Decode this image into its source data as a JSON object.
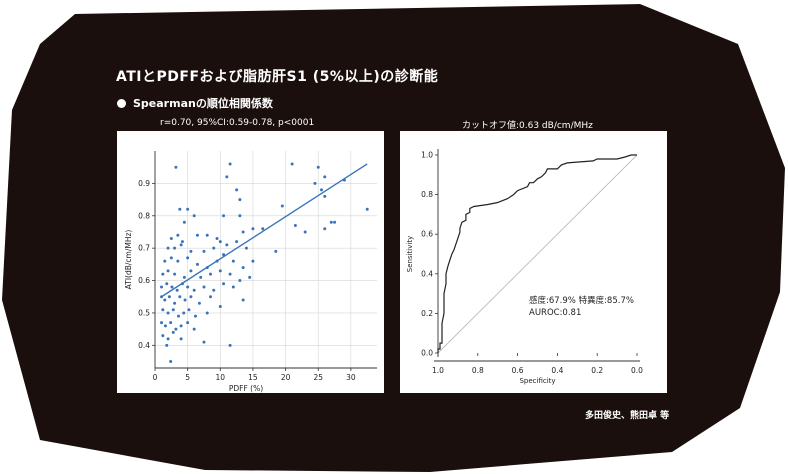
{
  "header": {
    "title": "ATIとPDFFおよび脂肪肝S1 (5%以上)の診断能",
    "bullet": "Spearmanの順位相関係数",
    "stats": "r=0.70, 95%CI:0.59-0.78, p<0001",
    "cutoff": "カットオフ値:0.63 dB/cm/MHz"
  },
  "authors": "多田俊史、熊田卓 等",
  "colors": {
    "background_blob": "#1a0f0d",
    "point": "#3a74b8",
    "roc_line": "#222222",
    "diagonal": "#bbbbbb"
  },
  "chart_data": [
    {
      "type": "scatter",
      "xlabel": "PDFF (%)",
      "ylabel": "ATI(dB/cm/MHz)",
      "xlim": [
        0,
        34
      ],
      "ylim": [
        0.33,
        1.0
      ],
      "xticks": [
        "0",
        "5",
        "10",
        "15",
        "20",
        "25",
        "30"
      ],
      "yticks": [
        "0.4",
        "0.5",
        "0.6",
        "0.7",
        "0.8",
        "0.9"
      ],
      "grid": true,
      "fit_line": {
        "x": [
          1.0,
          32.5
        ],
        "y": [
          0.55,
          0.96
        ]
      },
      "points": [
        [
          3.2,
          0.95
        ],
        [
          11.5,
          0.96
        ],
        [
          21,
          0.96
        ],
        [
          25,
          0.95
        ],
        [
          26,
          0.92
        ],
        [
          29,
          0.91
        ],
        [
          25.5,
          0.88
        ],
        [
          24.5,
          0.9
        ],
        [
          26,
          0.86
        ],
        [
          32.5,
          0.82
        ],
        [
          11,
          0.92
        ],
        [
          13,
          0.85
        ],
        [
          12.5,
          0.88
        ],
        [
          19.5,
          0.83
        ],
        [
          3.8,
          0.82
        ],
        [
          5,
          0.82
        ],
        [
          4.5,
          0.78
        ],
        [
          6,
          0.8
        ],
        [
          10.5,
          0.8
        ],
        [
          13,
          0.8
        ],
        [
          27.5,
          0.78
        ],
        [
          21.5,
          0.77
        ],
        [
          2.5,
          0.73
        ],
        [
          3.5,
          0.74
        ],
        [
          4.2,
          0.72
        ],
        [
          6.5,
          0.74
        ],
        [
          8,
          0.74
        ],
        [
          9.5,
          0.73
        ],
        [
          13.5,
          0.75
        ],
        [
          15,
          0.76
        ],
        [
          16.5,
          0.76
        ],
        [
          23,
          0.75
        ],
        [
          26,
          0.76
        ],
        [
          27,
          0.78
        ],
        [
          2,
          0.7
        ],
        [
          3,
          0.7
        ],
        [
          4,
          0.71
        ],
        [
          5.5,
          0.69
        ],
        [
          7.5,
          0.69
        ],
        [
          9,
          0.7
        ],
        [
          10,
          0.72
        ],
        [
          11,
          0.71
        ],
        [
          12.5,
          0.72
        ],
        [
          14,
          0.7
        ],
        [
          18.5,
          0.69
        ],
        [
          1.5,
          0.66
        ],
        [
          2.5,
          0.67
        ],
        [
          3.5,
          0.66
        ],
        [
          5,
          0.67
        ],
        [
          6.5,
          0.65
        ],
        [
          8,
          0.64
        ],
        [
          9.5,
          0.66
        ],
        [
          10.5,
          0.68
        ],
        [
          12,
          0.66
        ],
        [
          13.5,
          0.64
        ],
        [
          15,
          0.66
        ],
        [
          1.2,
          0.62
        ],
        [
          2,
          0.63
        ],
        [
          3,
          0.62
        ],
        [
          4.5,
          0.61
        ],
        [
          5.5,
          0.63
        ],
        [
          7,
          0.61
        ],
        [
          8.5,
          0.62
        ],
        [
          10,
          0.63
        ],
        [
          11.5,
          0.62
        ],
        [
          13,
          0.6
        ],
        [
          14.5,
          0.61
        ],
        [
          1,
          0.58
        ],
        [
          1.8,
          0.59
        ],
        [
          2.6,
          0.58
        ],
        [
          3.4,
          0.57
        ],
        [
          4.2,
          0.59
        ],
        [
          5,
          0.58
        ],
        [
          6,
          0.57
        ],
        [
          7.5,
          0.58
        ],
        [
          9,
          0.57
        ],
        [
          10.5,
          0.59
        ],
        [
          12,
          0.58
        ],
        [
          13.5,
          0.54
        ],
        [
          1,
          0.55
        ],
        [
          1.5,
          0.54
        ],
        [
          2.2,
          0.55
        ],
        [
          3,
          0.53
        ],
        [
          3.8,
          0.55
        ],
        [
          4.6,
          0.54
        ],
        [
          5.5,
          0.55
        ],
        [
          6.8,
          0.53
        ],
        [
          8.5,
          0.55
        ],
        [
          10,
          0.52
        ],
        [
          1.2,
          0.51
        ],
        [
          2,
          0.5
        ],
        [
          2.8,
          0.51
        ],
        [
          3.6,
          0.49
        ],
        [
          4.4,
          0.5
        ],
        [
          5.2,
          0.51
        ],
        [
          6.2,
          0.49
        ],
        [
          8,
          0.5
        ],
        [
          1,
          0.47
        ],
        [
          1.6,
          0.46
        ],
        [
          2.4,
          0.47
        ],
        [
          3.2,
          0.45
        ],
        [
          4,
          0.46
        ],
        [
          5,
          0.47
        ],
        [
          6,
          0.45
        ],
        [
          1.2,
          0.43
        ],
        [
          2,
          0.42
        ],
        [
          2.8,
          0.44
        ],
        [
          4,
          0.42
        ],
        [
          7.5,
          0.41
        ],
        [
          11.5,
          0.4
        ],
        [
          1.8,
          0.4
        ],
        [
          2.4,
          0.35
        ]
      ]
    },
    {
      "type": "line",
      "xlabel": "Specificity",
      "ylabel": "Sensitivity",
      "xlim": [
        1.0,
        0.0
      ],
      "ylim": [
        0.0,
        1.0
      ],
      "xticks": [
        "1.0",
        "0.8",
        "0.6",
        "0.4",
        "0.2",
        "0.0"
      ],
      "yticks": [
        "0.0",
        "0.2",
        "0.4",
        "0.6",
        "0.8",
        "1.0"
      ],
      "grid": false,
      "diagonal": true,
      "annotation": [
        "感度:67.9% 特異度:85.7%",
        "AUROC:0.81"
      ],
      "roc": [
        [
          1.0,
          0.0
        ],
        [
          1.0,
          0.02
        ],
        [
          0.99,
          0.02
        ],
        [
          0.99,
          0.05
        ],
        [
          0.98,
          0.05
        ],
        [
          0.98,
          0.1
        ],
        [
          0.98,
          0.15
        ],
        [
          0.97,
          0.2
        ],
        [
          0.97,
          0.3
        ],
        [
          0.96,
          0.35
        ],
        [
          0.96,
          0.4
        ],
        [
          0.95,
          0.44
        ],
        [
          0.94,
          0.47
        ],
        [
          0.93,
          0.5
        ],
        [
          0.92,
          0.52
        ],
        [
          0.91,
          0.55
        ],
        [
          0.9,
          0.58
        ],
        [
          0.89,
          0.61
        ],
        [
          0.89,
          0.63
        ],
        [
          0.88,
          0.66
        ],
        [
          0.86,
          0.67
        ],
        [
          0.86,
          0.7
        ],
        [
          0.84,
          0.71
        ],
        [
          0.84,
          0.73
        ],
        [
          0.82,
          0.74
        ],
        [
          0.75,
          0.75
        ],
        [
          0.7,
          0.76
        ],
        [
          0.65,
          0.78
        ],
        [
          0.62,
          0.8
        ],
        [
          0.6,
          0.82
        ],
        [
          0.55,
          0.84
        ],
        [
          0.54,
          0.86
        ],
        [
          0.52,
          0.86
        ],
        [
          0.5,
          0.88
        ],
        [
          0.48,
          0.89
        ],
        [
          0.46,
          0.91
        ],
        [
          0.45,
          0.93
        ],
        [
          0.4,
          0.93
        ],
        [
          0.38,
          0.95
        ],
        [
          0.35,
          0.96
        ],
        [
          0.22,
          0.97
        ],
        [
          0.2,
          0.98
        ],
        [
          0.1,
          0.98
        ],
        [
          0.06,
          0.99
        ],
        [
          0.03,
          1.0
        ],
        [
          0.0,
          1.0
        ]
      ]
    }
  ]
}
